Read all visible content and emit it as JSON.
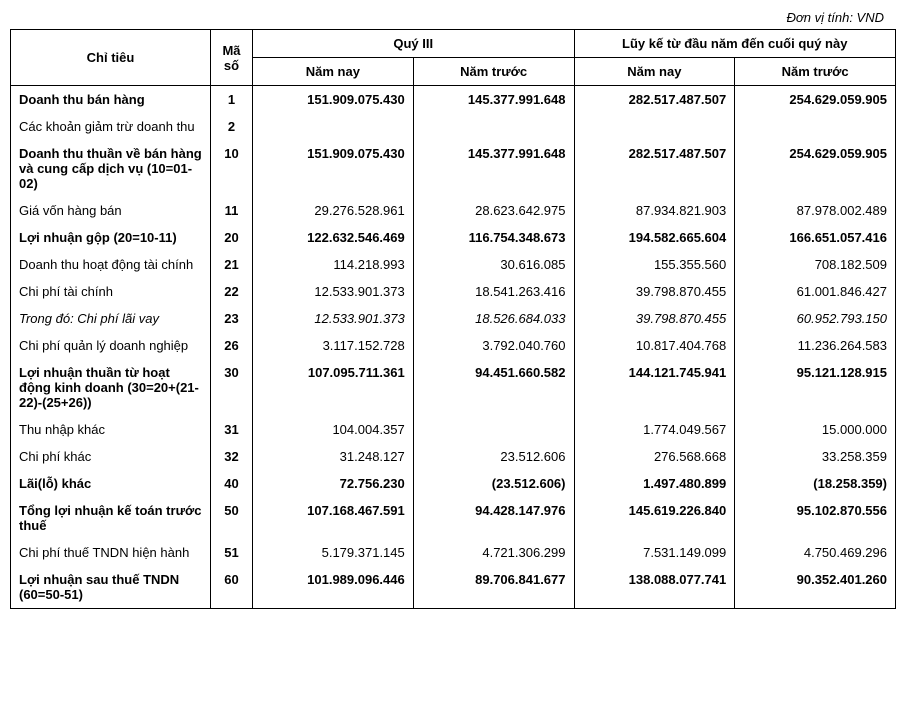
{
  "unit_label": "Đơn vị tính: VND",
  "header": {
    "col_label": "Chỉ tiêu",
    "col_code": "Mã số",
    "group_q3": "Quý III",
    "group_ytd": "Lũy kế từ đầu năm đến cuối quý này",
    "this_year": "Năm nay",
    "prev_year": "Năm trước"
  },
  "rows": [
    {
      "label": "Doanh thu bán hàng",
      "code": "1",
      "q3_now": "151.909.075.430",
      "q3_prev": "145.377.991.648",
      "ytd_now": "282.517.487.507",
      "ytd_prev": "254.629.059.905",
      "bold": true
    },
    {
      "label": "Các khoản giảm trừ doanh thu",
      "code": "2",
      "q3_now": "",
      "q3_prev": "",
      "ytd_now": "",
      "ytd_prev": "",
      "bold": false
    },
    {
      "label": "Doanh thu thuần về bán hàng và cung cấp dịch vụ (10=01-02)",
      "code": "10",
      "q3_now": "151.909.075.430",
      "q3_prev": "145.377.991.648",
      "ytd_now": "282.517.487.507",
      "ytd_prev": "254.629.059.905",
      "bold": true
    },
    {
      "label": "Giá vốn hàng bán",
      "code": "11",
      "q3_now": "29.276.528.961",
      "q3_prev": "28.623.642.975",
      "ytd_now": "87.934.821.903",
      "ytd_prev": "87.978.002.489",
      "bold": false
    },
    {
      "label": "Lợi nhuận gộp (20=10-11)",
      "code": "20",
      "q3_now": "122.632.546.469",
      "q3_prev": "116.754.348.673",
      "ytd_now": "194.582.665.604",
      "ytd_prev": "166.651.057.416",
      "bold": true
    },
    {
      "label": "Doanh thu hoạt động tài chính",
      "code": "21",
      "q3_now": "114.218.993",
      "q3_prev": "30.616.085",
      "ytd_now": "155.355.560",
      "ytd_prev": "708.182.509",
      "bold": false
    },
    {
      "label": "Chi phí tài chính",
      "code": "22",
      "q3_now": "12.533.901.373",
      "q3_prev": "18.541.263.416",
      "ytd_now": "39.798.870.455",
      "ytd_prev": "61.001.846.427",
      "bold": false
    },
    {
      "label": "Trong đó: Chi phí lãi vay",
      "code": "23",
      "q3_now": "12.533.901.373",
      "q3_prev": "18.526.684.033",
      "ytd_now": "39.798.870.455",
      "ytd_prev": "60.952.793.150",
      "bold": false,
      "italic": true
    },
    {
      "label": "Chi phí quản lý doanh nghiệp",
      "code": "26",
      "q3_now": "3.117.152.728",
      "q3_prev": "3.792.040.760",
      "ytd_now": "10.817.404.768",
      "ytd_prev": "11.236.264.583",
      "bold": false
    },
    {
      "label": "Lợi nhuận thuần từ hoạt động kinh doanh (30=20+(21-22)-(25+26))",
      "code": "30",
      "q3_now": "107.095.711.361",
      "q3_prev": "94.451.660.582",
      "ytd_now": "144.121.745.941",
      "ytd_prev": "95.121.128.915",
      "bold": true
    },
    {
      "label": "Thu nhập khác",
      "code": "31",
      "q3_now": "104.004.357",
      "q3_prev": "",
      "ytd_now": "1.774.049.567",
      "ytd_prev": "15.000.000",
      "bold": false
    },
    {
      "label": "Chi phí khác",
      "code": "32",
      "q3_now": "31.248.127",
      "q3_prev": "23.512.606",
      "ytd_now": "276.568.668",
      "ytd_prev": "33.258.359",
      "bold": false
    },
    {
      "label": "Lãi(lỗ) khác",
      "code": "40",
      "q3_now": "72.756.230",
      "q3_prev": "(23.512.606)",
      "ytd_now": "1.497.480.899",
      "ytd_prev": "(18.258.359)",
      "bold": true
    },
    {
      "label": "Tổng lợi nhuận kế toán trước thuế",
      "code": "50",
      "q3_now": "107.168.467.591",
      "q3_prev": "94.428.147.976",
      "ytd_now": "145.619.226.840",
      "ytd_prev": "95.102.870.556",
      "bold": true
    },
    {
      "label": "Chi phí thuế TNDN hiện hành",
      "code": "51",
      "q3_now": "5.179.371.145",
      "q3_prev": "4.721.306.299",
      "ytd_now": "7.531.149.099",
      "ytd_prev": "4.750.469.296",
      "bold": false
    },
    {
      "label": "Lợi nhuận sau thuế TNDN (60=50-51)",
      "code": "60",
      "q3_now": "101.989.096.446",
      "q3_prev": "89.706.841.677",
      "ytd_now": "138.088.077.741",
      "ytd_prev": "90.352.401.260",
      "bold": true
    }
  ]
}
